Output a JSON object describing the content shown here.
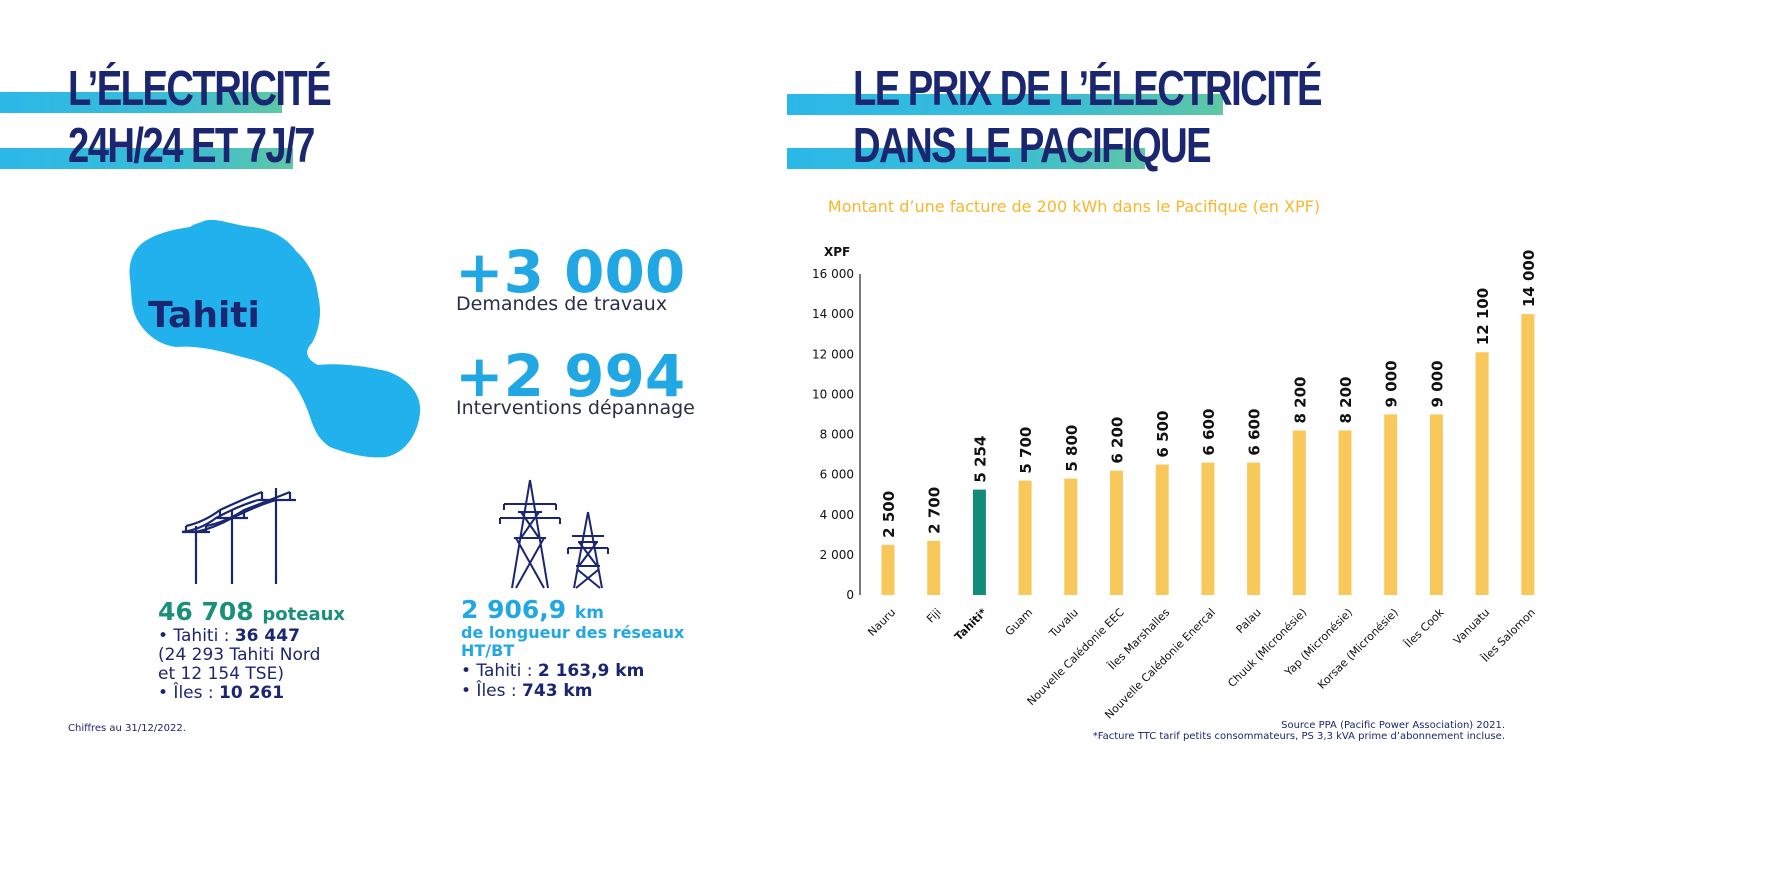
{
  "colors": {
    "navy": "#1b2670",
    "blue": "#21a8e4",
    "teal": "#1a8f7a",
    "bar_yellow": "#f9c85a",
    "bar_highlight": "#148a78",
    "subtitle_yellow": "#f7b72b"
  },
  "left": {
    "title_line1": "L’ÉLECTRICITÉ",
    "title_line2": "24H/24 ET 7J/7",
    "island_label": "Tahiti",
    "stat1_value": "+3 000",
    "stat1_label": "Demandes de travaux",
    "stat2_value": "+2 994",
    "stat2_label": "Interventions dépannage",
    "poles": {
      "value": "46 708",
      "unit": "poteaux",
      "line1_prefix": "• Tahiti : ",
      "line1_value": "36 447",
      "line2": "(24 293 Tahiti Nord",
      "line3": "et 12 154 TSE)",
      "line4_prefix": "• Îles : ",
      "line4_value": "10 261",
      "icon": "power-poles-icon"
    },
    "network": {
      "value": "2 906,9",
      "unit": "km",
      "line1": "de longueur des réseaux",
      "line2": "HT/BT",
      "line3_prefix": "• Tahiti : ",
      "line3_value": "2 163,9 km",
      "line4_prefix": "• Îles : ",
      "line4_value": "743 km",
      "icon": "transmission-tower-icon"
    },
    "footnote": "Chiffres au 31/12/2022."
  },
  "right": {
    "title_line1": "LE PRIX DE L’ÉLECTRICITÉ",
    "title_line2": "DANS LE PACIFIQUE",
    "source_line1": "Source PPA (Pacific Power Association) 2021.",
    "source_line2": "*Facture TTC tarif petits consommateurs, PS 3,3 kVA prime d’abonnement incluse."
  },
  "chart_data": {
    "type": "bar",
    "title": "Montant d’une facture de 200 kWh dans le Pacifique (en XPF)",
    "ylabel": "XPF",
    "ylim": [
      0,
      16000
    ],
    "yticks": [
      0,
      2000,
      4000,
      6000,
      8000,
      10000,
      12000,
      14000,
      16000
    ],
    "ytick_labels": [
      "0",
      "2 000",
      "4 000",
      "6 000",
      "8 000",
      "10 000",
      "12 000",
      "14 000",
      "16 000"
    ],
    "categories": [
      "Nauru",
      "Fiji",
      "Tahiti*",
      "Guam",
      "Tuvalu",
      "Nouvelle Calédonie EEC",
      "Îles Marshalles",
      "Nouvelle Calédonie Enercal",
      "Palau",
      "Chuuk (Micronésie)",
      "Yap (Micronésie)",
      "Korsae (Micronésie)",
      "Îles Cook",
      "Vanuatu",
      "Îles Salomon"
    ],
    "values": [
      2500,
      2700,
      5254,
      5700,
      5800,
      6200,
      6500,
      6600,
      6600,
      8200,
      8200,
      9000,
      9000,
      12100,
      14000
    ],
    "value_labels": [
      "2 500",
      "2 700",
      "5 254",
      "5 700",
      "5 800",
      "6 200",
      "6 500",
      "6 600",
      "6 600",
      "8 200",
      "8 200",
      "9 000",
      "9 000",
      "12 100",
      "14 000"
    ],
    "highlight": "Tahiti*",
    "grid": false,
    "legend": "none"
  }
}
